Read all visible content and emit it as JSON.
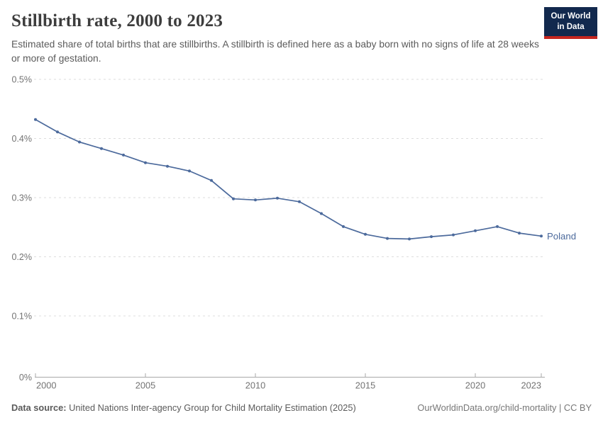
{
  "header": {
    "title": "Stillbirth rate, 2000 to 2023",
    "subtitle": "Estimated share of total births that are stillbirths. A stillbirth is defined here as a baby born with no signs of life at 28 weeks or more of gestation.",
    "logo": {
      "line1": "Our World",
      "line2": "in Data",
      "bg_color": "#12294e",
      "accent_color": "#c5261f"
    }
  },
  "chart_data": {
    "type": "line",
    "title": "Stillbirth rate, 2000 to 2023",
    "xlabel": "",
    "ylabel": "",
    "unit": "%",
    "x": [
      2000,
      2001,
      2002,
      2003,
      2004,
      2005,
      2006,
      2007,
      2008,
      2009,
      2010,
      2011,
      2012,
      2013,
      2014,
      2015,
      2016,
      2017,
      2018,
      2019,
      2020,
      2021,
      2022,
      2023
    ],
    "series": [
      {
        "name": "Poland",
        "color": "#4c6a9c",
        "values": [
          0.432,
          0.411,
          0.394,
          0.383,
          0.372,
          0.359,
          0.353,
          0.345,
          0.329,
          0.298,
          0.296,
          0.299,
          0.293,
          0.273,
          0.251,
          0.238,
          0.231,
          0.23,
          0.234,
          0.237,
          0.244,
          0.251,
          0.24,
          0.235
        ]
      }
    ],
    "ylim": [
      0,
      0.5
    ],
    "ytick_values": [
      0,
      0.1,
      0.2,
      0.3,
      0.4,
      0.5
    ],
    "ytick_labels": [
      "0%",
      "0.1%",
      "0.2%",
      "0.3%",
      "0.4%",
      "0.5%"
    ],
    "xtick_values": [
      2000,
      2005,
      2010,
      2015,
      2020,
      2023
    ],
    "grid": "horizontal-dashed",
    "grid_color": "#dddddd",
    "axis_color": "#a8a8a8",
    "tick_label_color": "#737373",
    "legend": "end-of-line-label",
    "markers": true
  },
  "footer": {
    "datasource_label": "Data source:",
    "datasource_text": " United Nations Inter-agency Group for Child Mortality Estimation (2025)",
    "link_text": "OurWorldinData.org/child-mortality | CC BY"
  }
}
